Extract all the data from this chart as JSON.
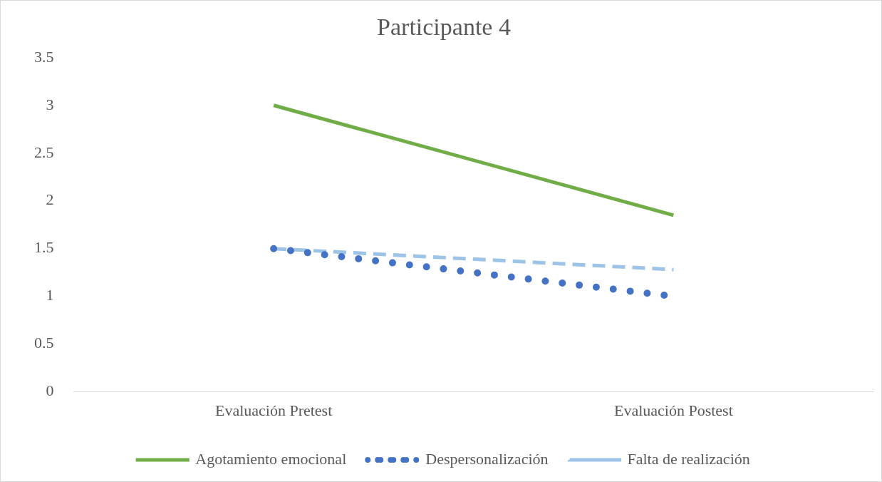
{
  "chart_data": {
    "type": "line",
    "title": "Participante 4",
    "categories": [
      "Evaluación Pretest",
      "Evaluación Postest"
    ],
    "series": [
      {
        "name": "Agotamiento emocional",
        "color": "#70ad47",
        "values": [
          3,
          1.85
        ],
        "line_style": "solid"
      },
      {
        "name": "Despersonalización",
        "color": "#4472c4",
        "values": [
          1.5,
          1
        ],
        "line_style": "dotted"
      },
      {
        "name": "Falta de realización",
        "color": "#9dc3e6",
        "values": [
          1.5,
          1.28
        ],
        "line_style": "dashed"
      }
    ],
    "ylim": [
      0,
      3.5
    ],
    "yticks": [
      0,
      0.5,
      1,
      1.5,
      2,
      2.5,
      3,
      3.5
    ],
    "grid": false,
    "legend": "bottom",
    "marker": "none"
  }
}
